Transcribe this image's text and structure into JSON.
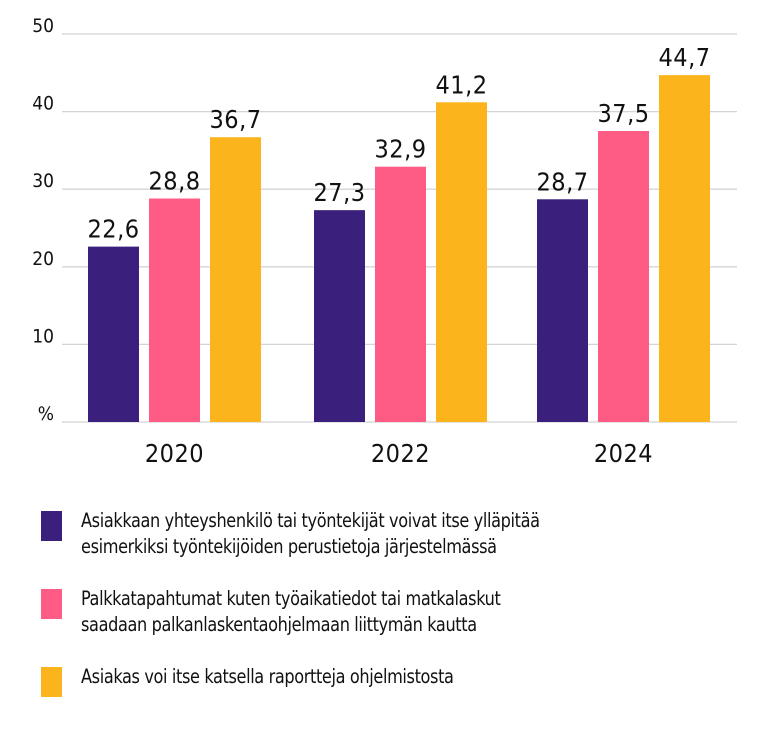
{
  "chart_data": {
    "type": "bar",
    "title": "",
    "xlabel": "",
    "ylabel": "%",
    "ylim": [
      0,
      50
    ],
    "yticks": [
      "%",
      "10",
      "20",
      "30",
      "40",
      "50"
    ],
    "grid": true,
    "categories": [
      "2020",
      "2022",
      "2024"
    ],
    "series": [
      {
        "name": "Asiakkaan yhteyshenkilö tai työntekijät voivat itse ylläpitää esimerkiksi työntekijöiden perustietoja järjestelmässä",
        "legend_lines": [
          "Asiakkaan yhteyshenkilö tai työntekijät voivat itse ylläpitää",
          "esimerkiksi työntekijöiden perustietoja järjestelmässä"
        ],
        "color": "#3a1f7c",
        "values": [
          22.6,
          27.3,
          28.7
        ],
        "labels": [
          "22,6",
          "27,3",
          "28,7"
        ]
      },
      {
        "name": "Palkkatapahtumat kuten työaikatiedot tai matkalaskut saadaan palkanlaskentaohjelmaan liittymän kautta",
        "legend_lines": [
          "Palkkatapahtumat kuten työaikatiedot tai matkalaskut",
          "saadaan palkanlaskentaohjelmaan liittymän kautta"
        ],
        "color": "#ff5c85",
        "values": [
          28.8,
          32.9,
          37.5
        ],
        "labels": [
          "28,8",
          "32,9",
          "37,5"
        ]
      },
      {
        "name": "Asiakas voi itse katsella raportteja ohjelmistosta",
        "legend_lines": [
          "Asiakas voi itse katsella raportteja ohjelmistosta"
        ],
        "color": "#fbb41c",
        "values": [
          36.7,
          41.2,
          44.7
        ],
        "labels": [
          "36,7",
          "41,2",
          "44,7"
        ]
      }
    ],
    "legend_position": "bottom"
  }
}
